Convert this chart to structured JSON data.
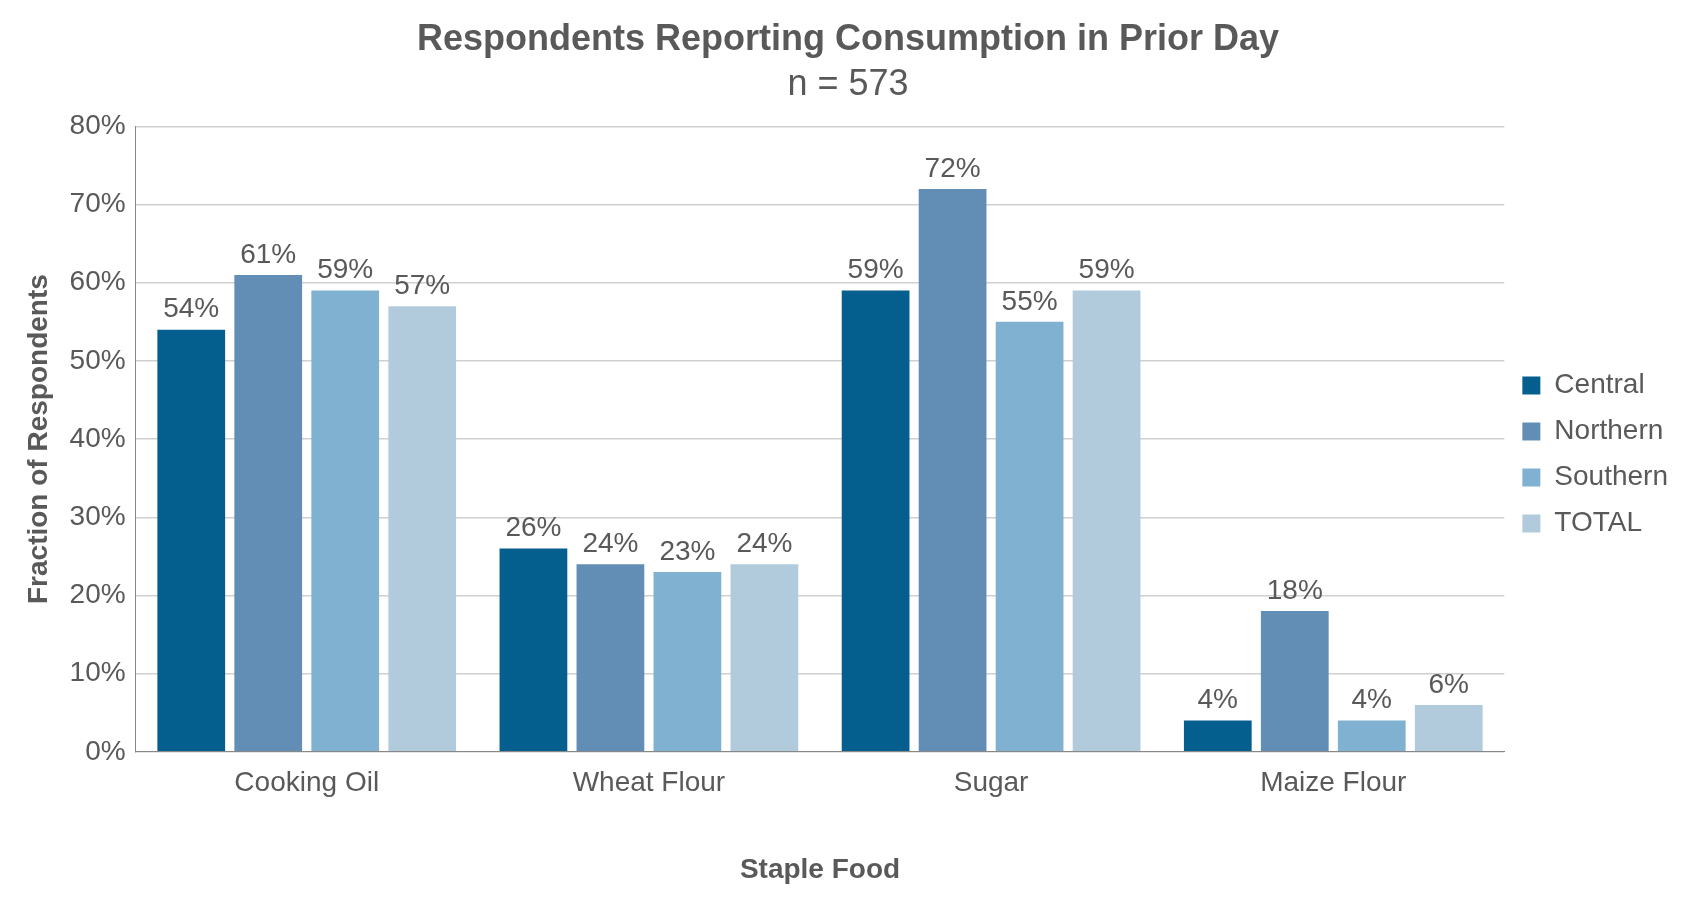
{
  "chart_data": {
    "type": "bar",
    "title": "Respondents Reporting Consumption in Prior Day",
    "subtitle": "n = 573",
    "xlabel": "Staple Food",
    "ylabel": "Fraction of Respondents",
    "categories": [
      "Cooking Oil",
      "Wheat Flour",
      "Sugar",
      "Maize Flour"
    ],
    "series": [
      {
        "name": "Central",
        "color": "#045f8e",
        "values": [
          54,
          26,
          59,
          4
        ],
        "value_labels": [
          "54%",
          "26%",
          "59%",
          "4%"
        ]
      },
      {
        "name": "Northern",
        "color": "#628eb5",
        "values": [
          61,
          24,
          72,
          18
        ],
        "value_labels": [
          "61%",
          "24%",
          "72%",
          "18%"
        ]
      },
      {
        "name": "Southern",
        "color": "#80b1d0",
        "values": [
          59,
          23,
          55,
          4
        ],
        "value_labels": [
          "59%",
          "23%",
          "55%",
          "4%"
        ]
      },
      {
        "name": "TOTAL",
        "color": "#b1cbdd",
        "values": [
          57,
          24,
          59,
          6
        ],
        "value_labels": [
          "57%",
          "24%",
          "59%",
          "6%"
        ]
      }
    ],
    "ylim": [
      0,
      80
    ],
    "yticks": [
      {
        "value": 0,
        "label": "0%"
      },
      {
        "value": 10,
        "label": "10%"
      },
      {
        "value": 20,
        "label": "20%"
      },
      {
        "value": 30,
        "label": "30%"
      },
      {
        "value": 40,
        "label": "40%"
      },
      {
        "value": 50,
        "label": "50%"
      },
      {
        "value": 60,
        "label": "60%"
      },
      {
        "value": 70,
        "label": "70%"
      },
      {
        "value": 80,
        "label": "80%"
      }
    ],
    "grid": "y",
    "legend": "right"
  }
}
